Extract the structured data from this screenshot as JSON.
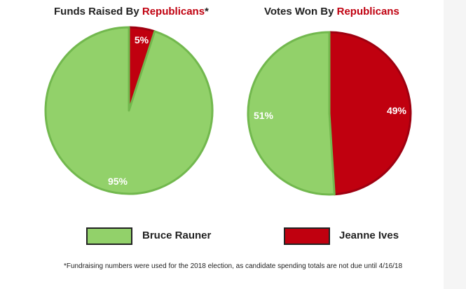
{
  "colors": {
    "green": "#92d16a",
    "green_border": "#72b84e",
    "red": "#c0000f",
    "red_border": "#9e0010",
    "text": "#222222"
  },
  "chart_data": [
    {
      "type": "pie",
      "title": "Funds Raised By Republicans*",
      "title_prefix": "Funds Raised By ",
      "title_accent": "Republicans",
      "title_suffix": "*",
      "categories": [
        "Jeanne Ives",
        "Bruce Rauner"
      ],
      "values": [
        5,
        95
      ],
      "labels": [
        "5%",
        "95%"
      ]
    },
    {
      "type": "pie",
      "title": "Votes Won By Republicans",
      "title_prefix": "Votes Won By ",
      "title_accent": "Republicans",
      "title_suffix": "",
      "categories": [
        "Jeanne Ives",
        "Bruce Rauner"
      ],
      "values": [
        49,
        51
      ],
      "labels": [
        "49%",
        "51%"
      ]
    }
  ],
  "legend": {
    "items": [
      {
        "label": "Bruce Rauner",
        "color": "#92d16a"
      },
      {
        "label": "Jeanne Ives",
        "color": "#c0000f"
      }
    ]
  },
  "footnote": "*Fundraising numbers were used for the 2018 election, as candidate spending totals are not due until 4/16/18"
}
